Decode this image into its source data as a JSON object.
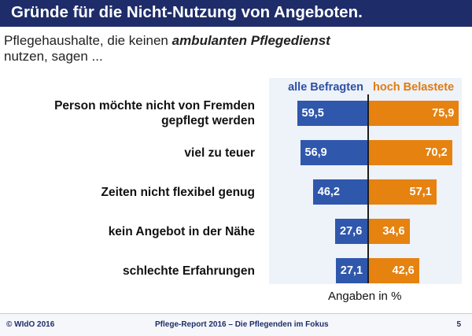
{
  "title": "Gründe für die Nicht-Nutzung von Angeboten.",
  "subtitle": {
    "before": "Pflegehaushalte, die keinen ",
    "emphasis": "ambulanten Pflegedienst",
    "after": " nutzen, sagen ..."
  },
  "colors": {
    "title_bar": "#1e2d69",
    "all": "#2f57ac",
    "high": "#e58210",
    "plot_background": "#eef2f9"
  },
  "chart_data": {
    "type": "bar",
    "orientation": "horizontal-mirrored",
    "categories": [
      "Person möchte nicht von Fremden gepflegt werden",
      "viel zu teuer",
      "Zeiten nicht flexibel genug",
      "kein Angebot in der Nähe",
      "schlechte Erfahrungen"
    ],
    "series": [
      {
        "name": "alle Befragten",
        "values": [
          59.5,
          56.9,
          46.2,
          27.6,
          27.1
        ],
        "labels": [
          "59,5",
          "56,9",
          "46,2",
          "27,6",
          "27,1"
        ]
      },
      {
        "name": "hoch Belastete",
        "values": [
          75.9,
          70.2,
          57.1,
          34.6,
          42.6
        ],
        "labels": [
          "75,9",
          "70,2",
          "57,1",
          "34,6",
          "42,6"
        ]
      }
    ],
    "xlabel": "Angaben in %",
    "xlim": [
      0,
      100
    ],
    "grid": false,
    "legend": "top"
  },
  "footer": {
    "left": "© WIdO 2016",
    "center": "Pflege-Report 2016 – Die Pflegenden im Fokus",
    "page": "5"
  }
}
